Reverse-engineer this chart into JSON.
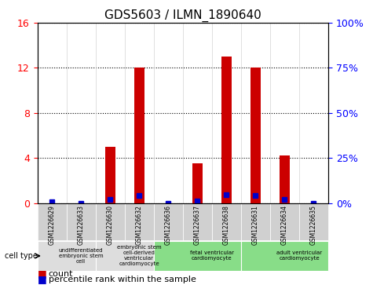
{
  "title": "GDS5603 / ILMN_1890640",
  "samples": [
    "GSM1226629",
    "GSM1226633",
    "GSM1226630",
    "GSM1226632",
    "GSM1226636",
    "GSM1226637",
    "GSM1226638",
    "GSM1226631",
    "GSM1226634",
    "GSM1226635"
  ],
  "counts": [
    0,
    0,
    5.0,
    12.0,
    0,
    3.5,
    13.0,
    12.0,
    4.2,
    0
  ],
  "percentile_ranks": [
    0.8,
    0,
    2.0,
    4.3,
    0,
    1.0,
    4.7,
    4.3,
    2.0,
    0
  ],
  "ylim_left": [
    0,
    16
  ],
  "ylim_right": [
    0,
    100
  ],
  "yticks_left": [
    0,
    4,
    8,
    12,
    16
  ],
  "yticks_right": [
    0,
    25,
    50,
    75,
    100
  ],
  "bar_color": "#cc0000",
  "dot_color": "#0000cc",
  "bar_width": 0.35,
  "grid_color": "#000000",
  "bg_color": "#ffffff",
  "plot_bg": "#ffffff",
  "cell_type_groups": [
    {
      "label": "undifferentiated\nembryonic stem\ncell",
      "start": 0,
      "end": 2,
      "color": "#dddddd"
    },
    {
      "label": "embryonic stem\ncell-derived\nventricular\ncardiomyocyte",
      "start": 2,
      "end": 4,
      "color": "#dddddd"
    },
    {
      "label": "fetal ventricular\ncardiomyocyte",
      "start": 4,
      "end": 7,
      "color": "#88dd88"
    },
    {
      "label": "adult ventricular\ncardiomyocyte",
      "start": 7,
      "end": 10,
      "color": "#88dd88"
    }
  ],
  "legend_count_label": "count",
  "legend_pct_label": "percentile rank within the sample",
  "cell_type_label": "cell type"
}
